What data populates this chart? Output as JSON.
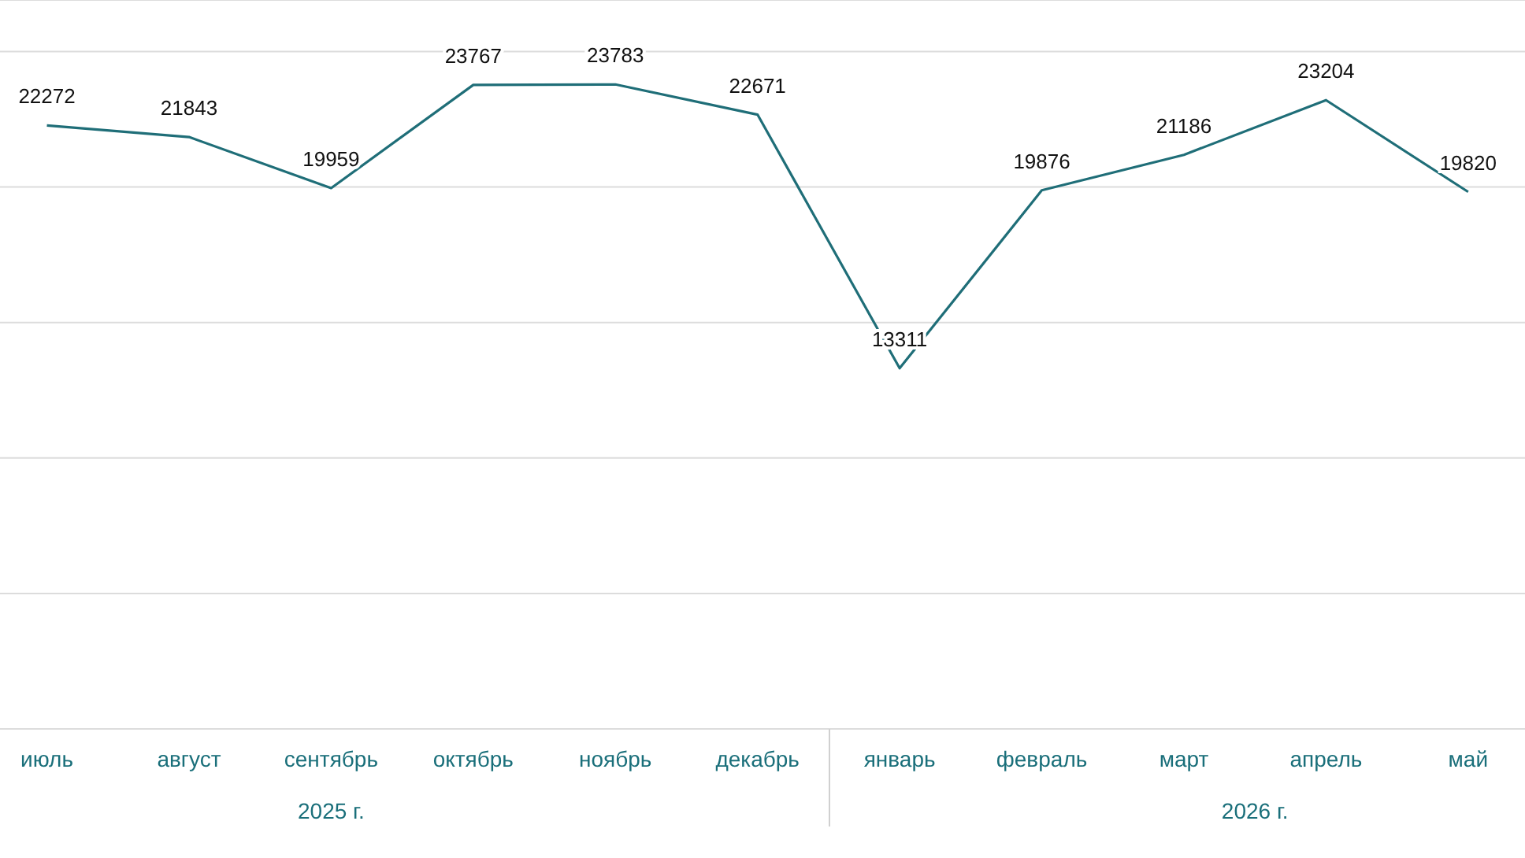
{
  "chart_data": {
    "type": "line",
    "categories": [
      "июль",
      "август",
      "сентябрь",
      "октябрь",
      "ноябрь",
      "декабрь",
      "январь",
      "февраль",
      "март",
      "апрель",
      "май"
    ],
    "series": [
      {
        "color": "#1f6e78",
        "values": [
          22272,
          21843,
          19959,
          23767,
          23783,
          22671,
          13311,
          19876,
          21186,
          23204,
          19820
        ]
      }
    ],
    "data_labels": true,
    "ylim": [
      0,
      26900
    ],
    "yticks": [
      {
        "value": 0,
        "label": null
      },
      {
        "value": 5000,
        "label": null
      },
      {
        "value": 10000,
        "label": null
      },
      {
        "value": 15000,
        "label": null
      },
      {
        "value": 20000,
        "label": null
      },
      {
        "value": 25000,
        "label": null
      }
    ],
    "tick_labels": "x",
    "grid": "y",
    "marker": "none",
    "line_style": "solid",
    "annotations": [
      "2025 г.",
      "2026 г."
    ]
  }
}
